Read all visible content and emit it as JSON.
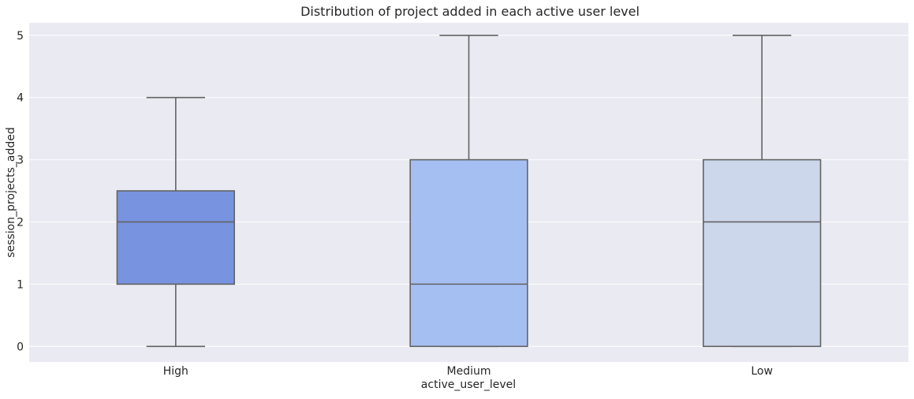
{
  "chart_data": {
    "type": "box",
    "title": "Distribution of project added in each active user level",
    "xlabel": "active_user_level",
    "ylabel": "session_projects_added",
    "ylim": [
      -0.25,
      5.2
    ],
    "yticks": [
      0,
      1,
      2,
      3,
      4,
      5
    ],
    "grid": true,
    "legend": "none",
    "categories": [
      "High",
      "Medium",
      "Low"
    ],
    "boxes": [
      {
        "category": "High",
        "whisker_low": 0,
        "q1": 1,
        "median": 2,
        "q3": 2.5,
        "whisker_high": 4,
        "color": "#7893df"
      },
      {
        "category": "Medium",
        "whisker_low": 0,
        "q1": 0,
        "median": 1,
        "q3": 3,
        "whisker_high": 5,
        "color": "#a6bff2"
      },
      {
        "category": "Low",
        "whisker_low": 0,
        "q1": 0,
        "median": 2,
        "q3": 3,
        "whisker_high": 5,
        "color": "#ccd7eb"
      }
    ],
    "colors": {
      "background": "#eaeaf2",
      "grid": "#ffffff",
      "line": "#636363"
    }
  }
}
